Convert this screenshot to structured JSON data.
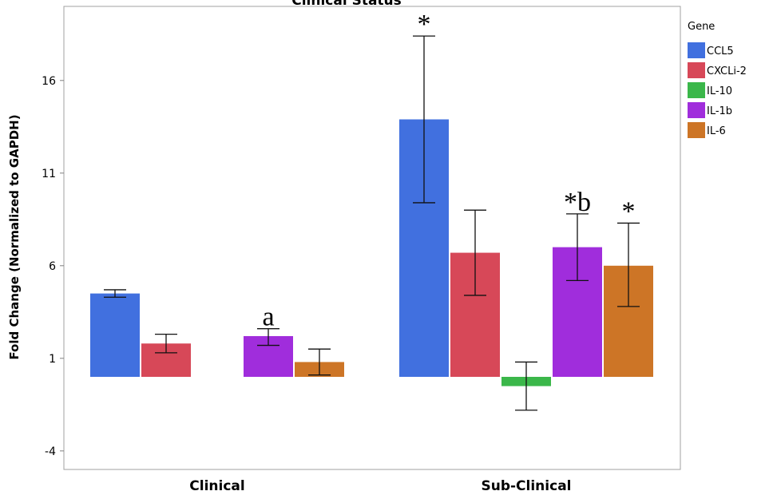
{
  "chart_data": {
    "type": "bar",
    "title": "Clinical Status",
    "ylabel": "Fold Change (Normalized to GAPDH)",
    "xlabel": "",
    "ylim": [
      -5.0,
      20.0
    ],
    "yticks": [
      -4,
      1,
      6,
      11,
      16
    ],
    "grid": false,
    "legend_title": "Gene",
    "legend_position": "right",
    "categories": [
      "Clinical",
      "Sub-Clinical"
    ],
    "series": [
      {
        "name": "CCL5",
        "color": "#4170df",
        "values": [
          4.5,
          13.9
        ],
        "err_low": [
          4.3,
          9.4
        ],
        "err_high": [
          4.7,
          18.4
        ],
        "annotations": [
          "",
          "*"
        ]
      },
      {
        "name": "CXCLi-2",
        "color": "#d74858",
        "values": [
          1.8,
          6.7
        ],
        "err_low": [
          1.3,
          4.4
        ],
        "err_high": [
          2.3,
          9.0
        ],
        "annotations": [
          "",
          ""
        ]
      },
      {
        "name": "IL-10",
        "color": "#3bb74a",
        "values": [
          null,
          -0.5
        ],
        "err_low": [
          null,
          -1.8
        ],
        "err_high": [
          null,
          0.8
        ],
        "annotations": [
          "",
          ""
        ]
      },
      {
        "name": "IL-1b",
        "color": "#a02ddc",
        "values": [
          2.2,
          7.0
        ],
        "err_low": [
          1.7,
          5.2
        ],
        "err_high": [
          2.6,
          8.8
        ],
        "annotations": [
          "a",
          "*b"
        ]
      },
      {
        "name": "IL-6",
        "color": "#cd7526",
        "values": [
          0.8,
          6.0
        ],
        "err_low": [
          0.1,
          3.8
        ],
        "err_high": [
          1.5,
          8.3
        ],
        "annotations": [
          "",
          "*"
        ]
      }
    ]
  }
}
